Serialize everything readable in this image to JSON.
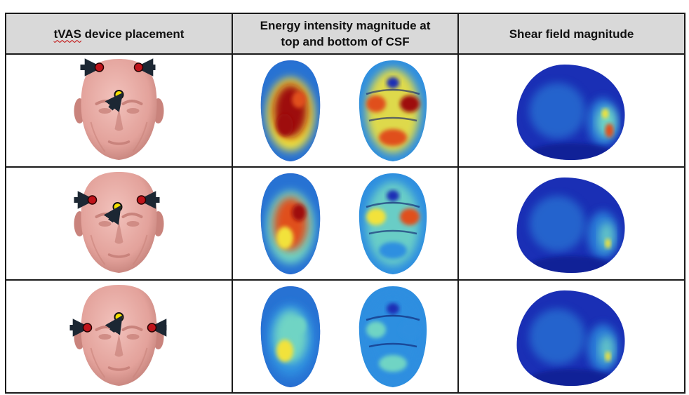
{
  "table": {
    "headers": {
      "tvas_word": "tVAS",
      "col1_rest": " device placement",
      "col2_line1": "Energy intensity magnitude at",
      "col2_line2": "top and bottom of CSF",
      "col3": "Shear field magnitude"
    },
    "rows": [
      {
        "placement": "top-forehead",
        "energy_level": "high",
        "shear_level": "medium"
      },
      {
        "placement": "mid-temples",
        "energy_level": "medium",
        "shear_level": "low"
      },
      {
        "placement": "low-sides",
        "energy_level": "low",
        "shear_level": "low"
      }
    ]
  },
  "colors": {
    "skin": "#e8a9a3",
    "skin_shade": "#c9837c",
    "electrode_red": "#c0141b",
    "electrode_yellow": "#f5e000",
    "arrow": "#1c2733",
    "cold": "#1a2fb5",
    "cool": "#2f8fe0",
    "mid": "#6fd4c4",
    "warm": "#f2e23a",
    "hot": "#e0501c",
    "max": "#9e0a0a"
  }
}
